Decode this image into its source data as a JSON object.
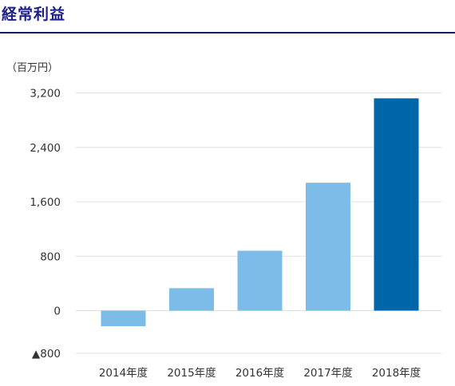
{
  "title": "経常利益",
  "chart_data": {
    "type": "bar",
    "unit": "（百万円）",
    "categories": [
      "2014年度",
      "2015年度",
      "2016年度",
      "2017年度",
      "2018年度"
    ],
    "values": [
      -230,
      330,
      880,
      1880,
      3120
    ],
    "bar_colors": [
      "#7dbce9",
      "#7dbce9",
      "#7dbce9",
      "#7dbce9",
      "#0066aa"
    ],
    "yticks": [
      -800,
      0,
      800,
      1600,
      2400,
      3200
    ],
    "ytick_labels": [
      "▲800",
      "0",
      "800",
      "1,600",
      "2,400",
      "3,200"
    ],
    "ylim": [
      -800,
      3200
    ],
    "grid": true,
    "grid_color": "#e0e0e0"
  }
}
